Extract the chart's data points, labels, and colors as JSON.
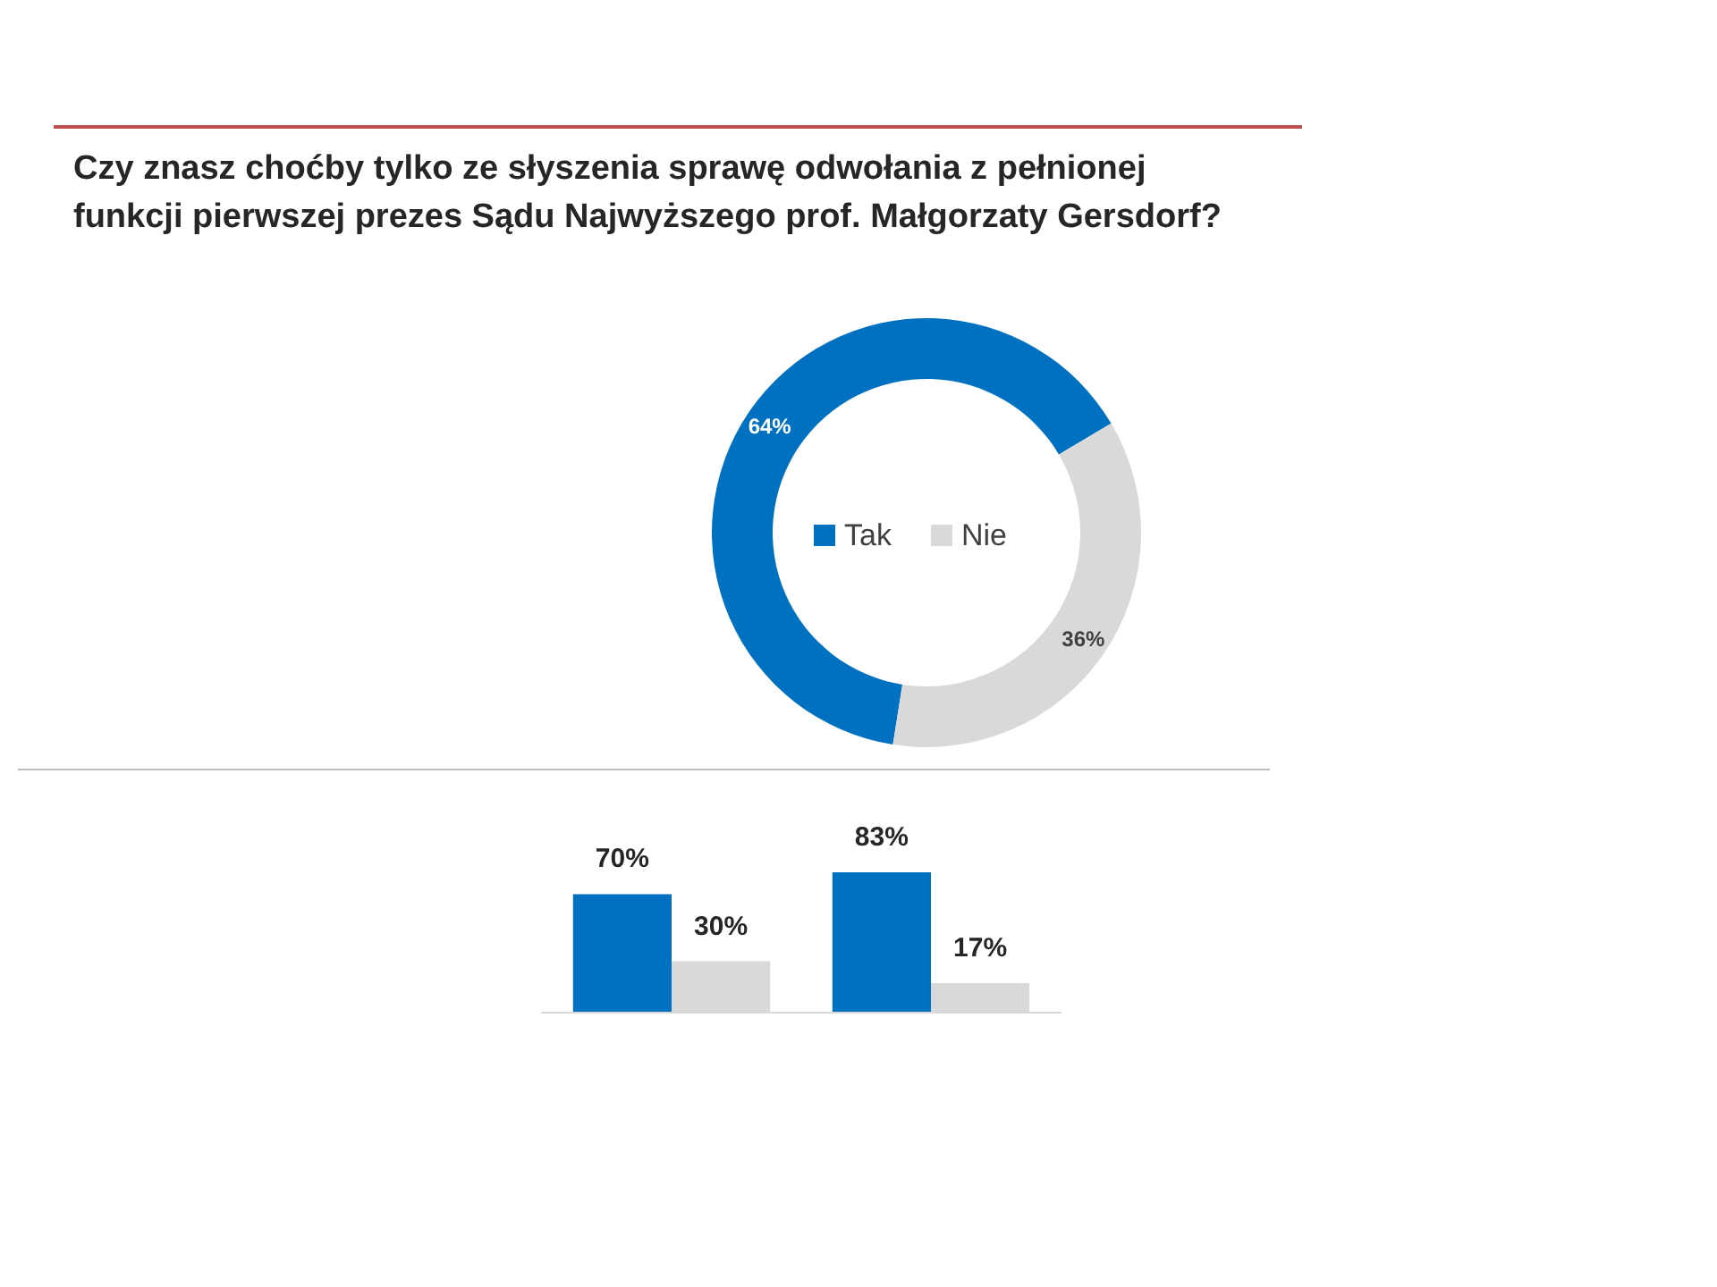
{
  "chart_data": [
    {
      "type": "donut",
      "title": "Czy znasz choćby tylko ze słyszenia sprawę odwołania z pełnionej funkcji pierwszej prezes Sądu Najwyższego prof. Małgorzaty Gersdorf?",
      "categories": [
        "Tak",
        "Nie"
      ],
      "values": [
        64,
        36
      ],
      "value_labels": [
        "64%",
        "36%"
      ],
      "colors": [
        "#0070c0",
        "#d9d9d9"
      ],
      "legend": "center"
    },
    {
      "type": "bar",
      "categories": [
        null,
        null
      ],
      "series": [
        {
          "color": "#0070c0",
          "values": [
            70,
            83
          ],
          "value_labels": [
            "70%",
            "83%"
          ]
        },
        {
          "color": "#d9d9d9",
          "values": [
            30,
            17
          ],
          "value_labels": [
            "30%",
            "17%"
          ]
        }
      ]
    }
  ]
}
